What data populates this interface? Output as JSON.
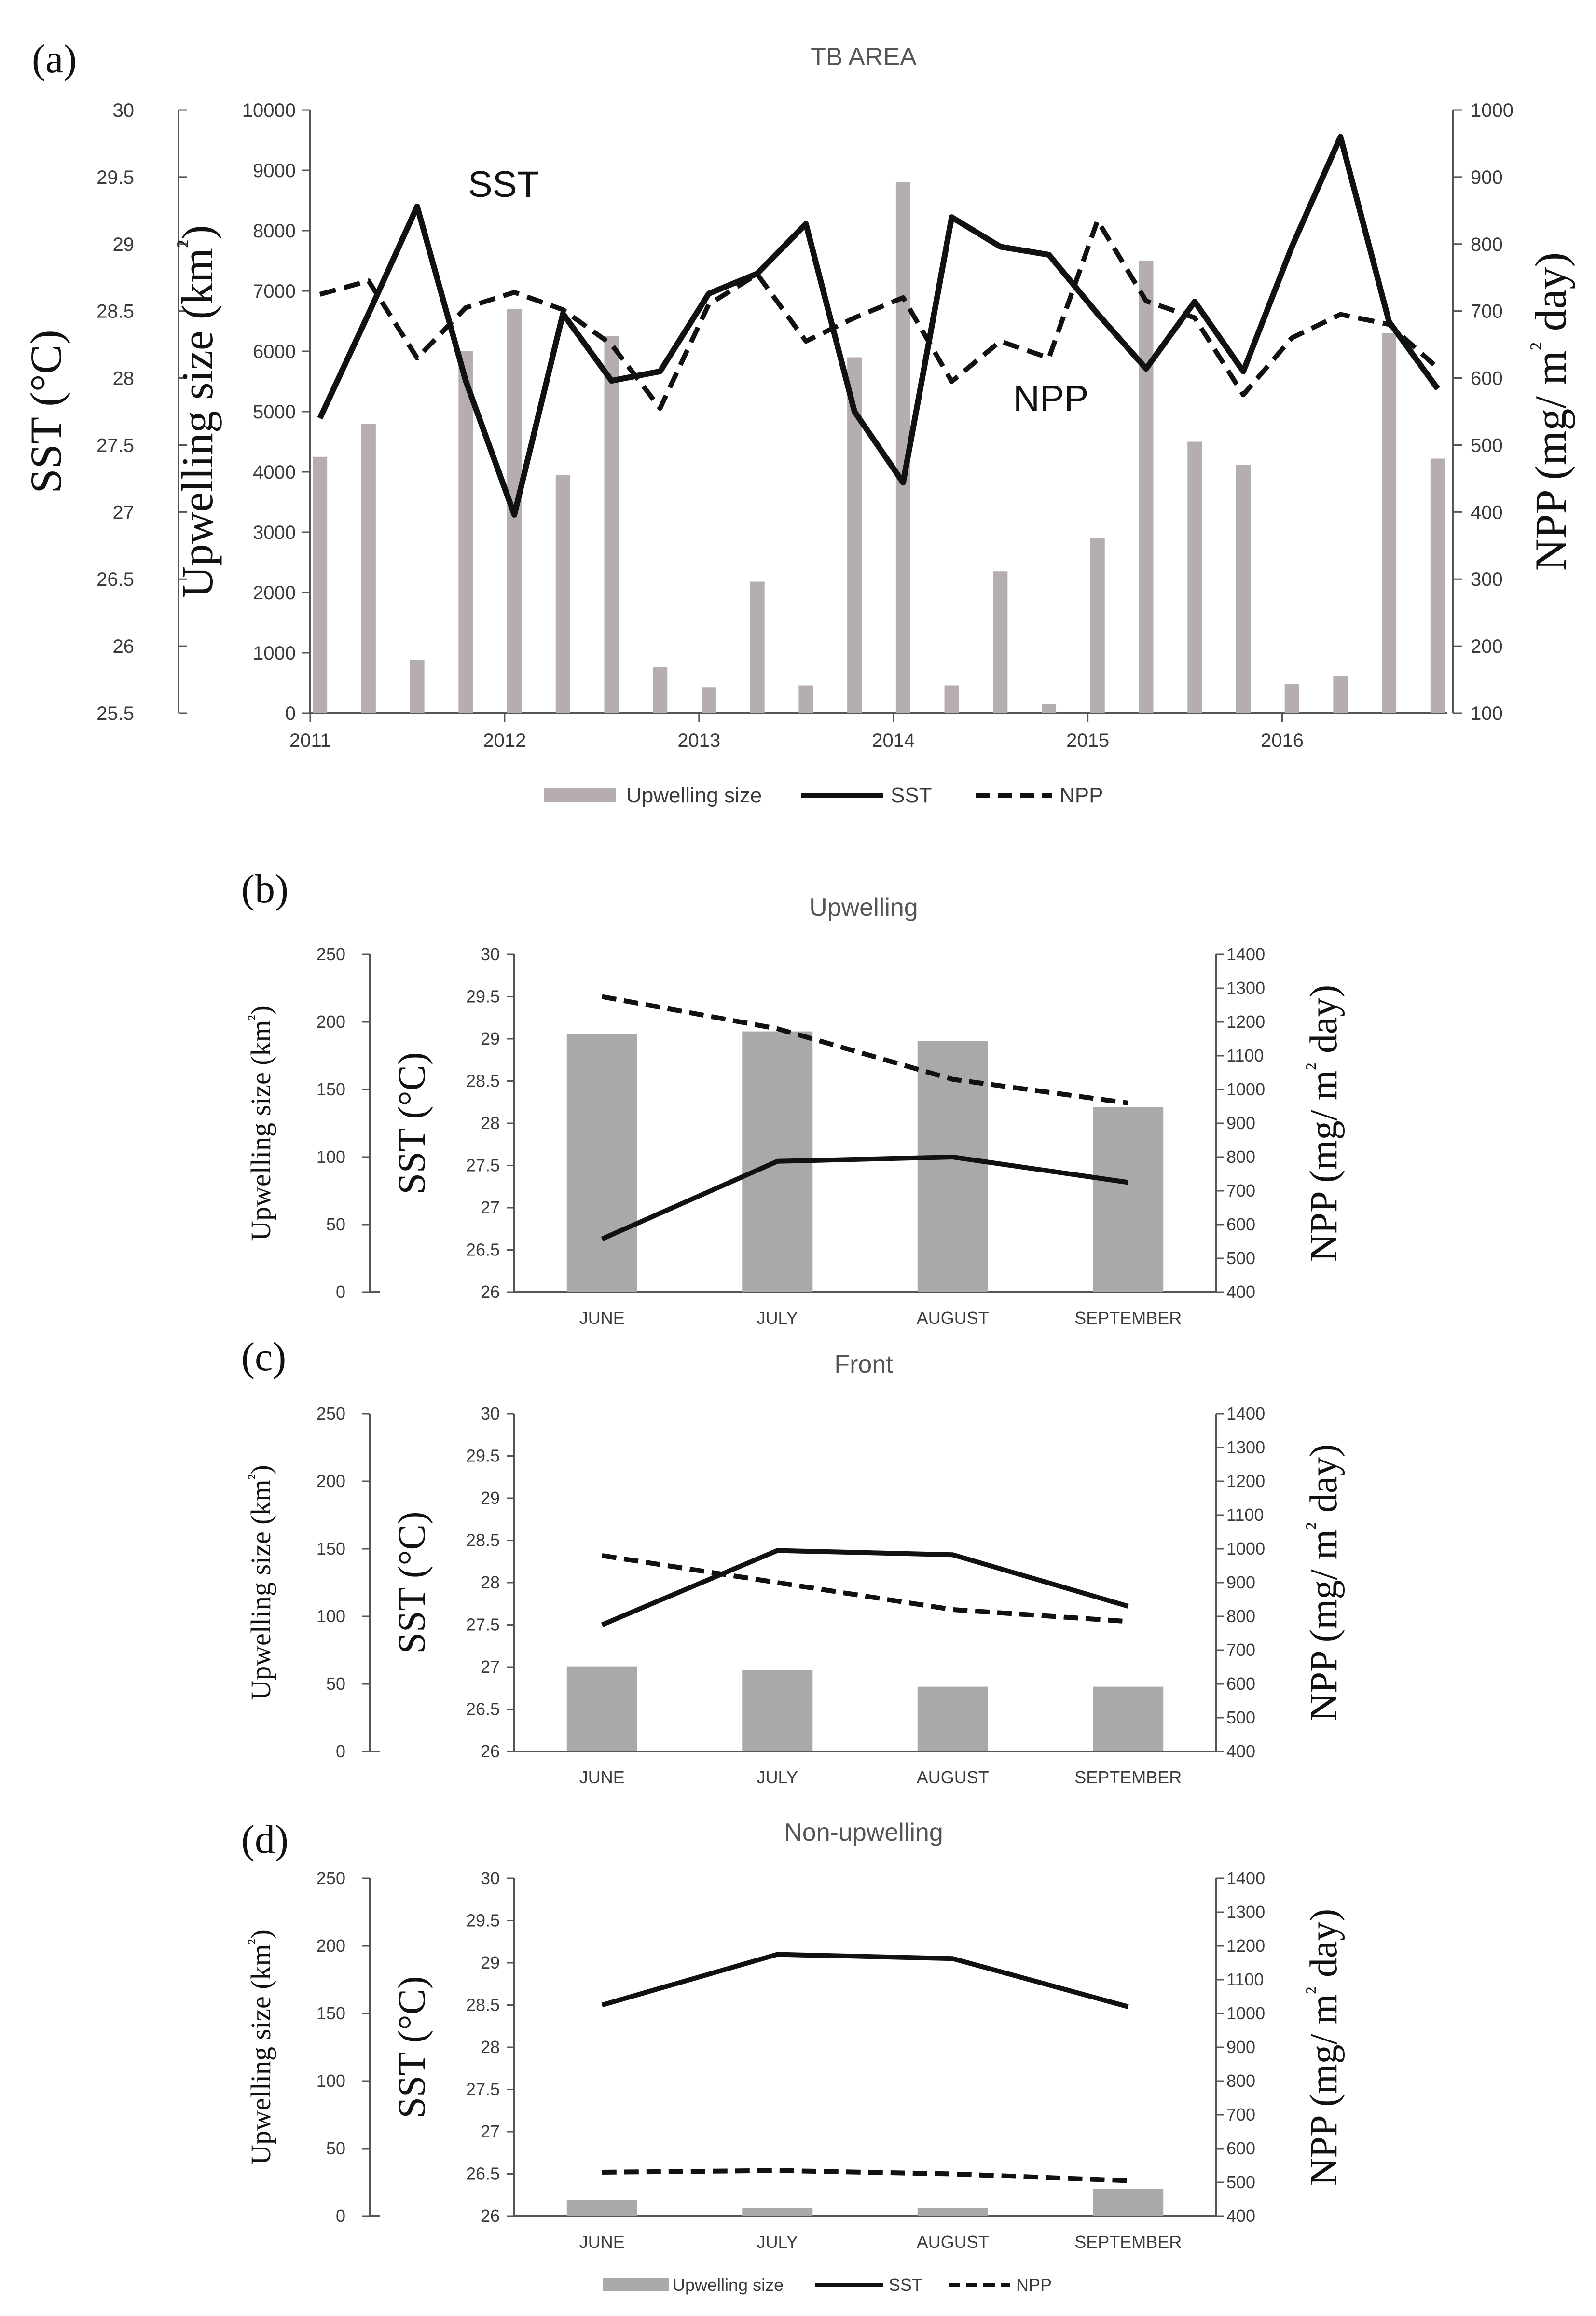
{
  "figure": {
    "legend": {
      "bar": "Upwelling size",
      "sst": "SST",
      "npp": "NPP"
    },
    "colors": {
      "bar_a": "#b5adae",
      "bar_b": "#a9a9a9",
      "sst": "#111111",
      "npp": "#111111"
    }
  },
  "chart_data": [
    {
      "panel_label": "(a)",
      "type": "bar+line",
      "title": "TB AREA",
      "annotations": [
        "SST",
        "NPP"
      ],
      "left_axis_sst": {
        "label": "SST (°C)",
        "range": [
          25.5,
          30
        ],
        "ticks": [
          "25.5",
          "26",
          "26.5",
          "27",
          "27.5",
          "28",
          "28.5",
          "29",
          "29.5",
          "30"
        ]
      },
      "left_axis_upwelling": {
        "label": "Upwelling size (km²)",
        "range": [
          0,
          10000
        ],
        "ticks": [
          "0",
          "1000",
          "2000",
          "3000",
          "4000",
          "5000",
          "6000",
          "7000",
          "8000",
          "9000",
          "10000"
        ]
      },
      "right_axis_npp": {
        "label": "NPP (mg/ m² day)",
        "range": [
          100,
          1000
        ],
        "ticks": [
          "100",
          "200",
          "300",
          "400",
          "500",
          "600",
          "700",
          "800",
          "900",
          "1000"
        ]
      },
      "x_axis_labels": [
        "2011",
        "2012",
        "2013",
        "2014",
        "2015",
        "2016"
      ],
      "x": [
        2011.05,
        2011.3,
        2011.55,
        2011.8,
        2012.05,
        2012.3,
        2012.55,
        2012.8,
        2013.05,
        2013.3,
        2013.55,
        2013.8,
        2014.05,
        2014.3,
        2014.55,
        2014.8,
        2015.05,
        2015.3,
        2015.55,
        2015.8,
        2016.05,
        2016.3,
        2016.55,
        2016.8
      ],
      "series": [
        {
          "name": "Upwelling size",
          "kind": "bar",
          "axis": "upwelling",
          "values": [
            4250,
            4800,
            880,
            6000,
            6700,
            3950,
            6250,
            760,
            430,
            2180,
            460,
            5900,
            8800,
            460,
            2350,
            150,
            2900,
            7500,
            4500,
            4120,
            480,
            620,
            6300,
            4220
          ]
        },
        {
          "name": "SST",
          "kind": "line",
          "axis": "sst",
          "values": [
            27.7,
            28.48,
            29.28,
            27.98,
            26.98,
            28.48,
            27.98,
            28.05,
            28.63,
            28.78,
            29.15,
            27.75,
            27.22,
            29.2,
            28.98,
            28.92,
            28.48,
            28.07,
            28.57,
            28.05,
            28.98,
            29.8,
            28.42,
            27.92
          ]
        },
        {
          "name": "NPP",
          "kind": "line",
          "axis": "npp",
          "dash": true,
          "values": [
            725,
            745,
            630,
            705,
            728,
            702,
            650,
            555,
            710,
            755,
            655,
            690,
            720,
            595,
            655,
            630,
            835,
            715,
            690,
            575,
            660,
            695,
            680,
            615
          ]
        }
      ]
    },
    {
      "panel_label": "(b)",
      "type": "bar+line",
      "title": "Upwelling",
      "left_axis_upwelling": {
        "label": "Upwelling size (km²)",
        "range": [
          0,
          250
        ],
        "ticks": [
          "0",
          "50",
          "100",
          "150",
          "200",
          "250"
        ]
      },
      "left_axis_sst": {
        "label": "SST (°C)",
        "range": [
          26,
          30
        ],
        "ticks": [
          "26",
          "26.5",
          "27",
          "27.5",
          "28",
          "28.5",
          "29",
          "29.5",
          "30"
        ]
      },
      "right_axis_npp": {
        "label": "NPP (mg/ m² day)",
        "range": [
          400,
          1400
        ],
        "ticks": [
          "400",
          "500",
          "600",
          "700",
          "800",
          "900",
          "1000",
          "1100",
          "1200",
          "1300",
          "1400"
        ]
      },
      "categories": [
        "JUNE",
        "JULY",
        "AUGUST",
        "SEPTEMBER"
      ],
      "series": [
        {
          "name": "Upwelling size",
          "kind": "bar",
          "axis": "upwelling",
          "values": [
            191,
            193,
            186,
            137
          ]
        },
        {
          "name": "SST",
          "kind": "line",
          "axis": "sst",
          "values": [
            26.63,
            27.55,
            27.6,
            27.3
          ]
        },
        {
          "name": "NPP",
          "kind": "line",
          "axis": "npp",
          "dash": true,
          "values": [
            1275,
            1180,
            1030,
            960
          ]
        }
      ]
    },
    {
      "panel_label": "(c)",
      "type": "bar+line",
      "title": "Front",
      "left_axis_upwelling": {
        "label": "Upwelling size (km²)",
        "range": [
          0,
          250
        ],
        "ticks": [
          "0",
          "50",
          "100",
          "150",
          "200",
          "250"
        ]
      },
      "left_axis_sst": {
        "label": "SST (°C)",
        "range": [
          26,
          30
        ],
        "ticks": [
          "26",
          "26.5",
          "27",
          "27.5",
          "28",
          "28.5",
          "29",
          "29.5",
          "30"
        ]
      },
      "right_axis_npp": {
        "label": "NPP (mg/ m² day)",
        "range": [
          400,
          1400
        ],
        "ticks": [
          "400",
          "500",
          "600",
          "700",
          "800",
          "900",
          "1000",
          "1100",
          "1200",
          "1300",
          "1400"
        ]
      },
      "categories": [
        "JUNE",
        "JULY",
        "AUGUST",
        "SEPTEMBER"
      ],
      "series": [
        {
          "name": "Upwelling size",
          "kind": "bar",
          "axis": "upwelling",
          "values": [
            63,
            60,
            48,
            48
          ]
        },
        {
          "name": "SST",
          "kind": "line",
          "axis": "sst",
          "values": [
            27.5,
            28.38,
            28.33,
            27.72
          ]
        },
        {
          "name": "NPP",
          "kind": "line",
          "axis": "npp",
          "dash": true,
          "values": [
            980,
            900,
            820,
            785
          ]
        }
      ]
    },
    {
      "panel_label": "(d)",
      "type": "bar+line",
      "title": "Non-upwelling",
      "left_axis_upwelling": {
        "label": "Upwelling size (km²)",
        "range": [
          0,
          250
        ],
        "ticks": [
          "0",
          "50",
          "100",
          "150",
          "200",
          "250"
        ]
      },
      "left_axis_sst": {
        "label": "SST (°C)",
        "range": [
          26,
          30
        ],
        "ticks": [
          "26",
          "26.5",
          "27",
          "27.5",
          "28",
          "28.5",
          "29",
          "29.5",
          "30"
        ]
      },
      "right_axis_npp": {
        "label": "NPP (mg/ m² day)",
        "range": [
          400,
          1400
        ],
        "ticks": [
          "400",
          "500",
          "600",
          "700",
          "800",
          "900",
          "1000",
          "1100",
          "1200",
          "1300",
          "1400"
        ]
      },
      "categories": [
        "JUNE",
        "JULY",
        "AUGUST",
        "SEPTEMBER"
      ],
      "series": [
        {
          "name": "Upwelling size",
          "kind": "bar",
          "axis": "upwelling",
          "values": [
            12,
            6,
            6,
            20
          ]
        },
        {
          "name": "SST",
          "kind": "line",
          "axis": "sst",
          "values": [
            28.5,
            29.1,
            29.05,
            28.48
          ]
        },
        {
          "name": "NPP",
          "kind": "line",
          "axis": "npp",
          "dash": true,
          "values": [
            530,
            535,
            525,
            505
          ]
        }
      ]
    }
  ]
}
